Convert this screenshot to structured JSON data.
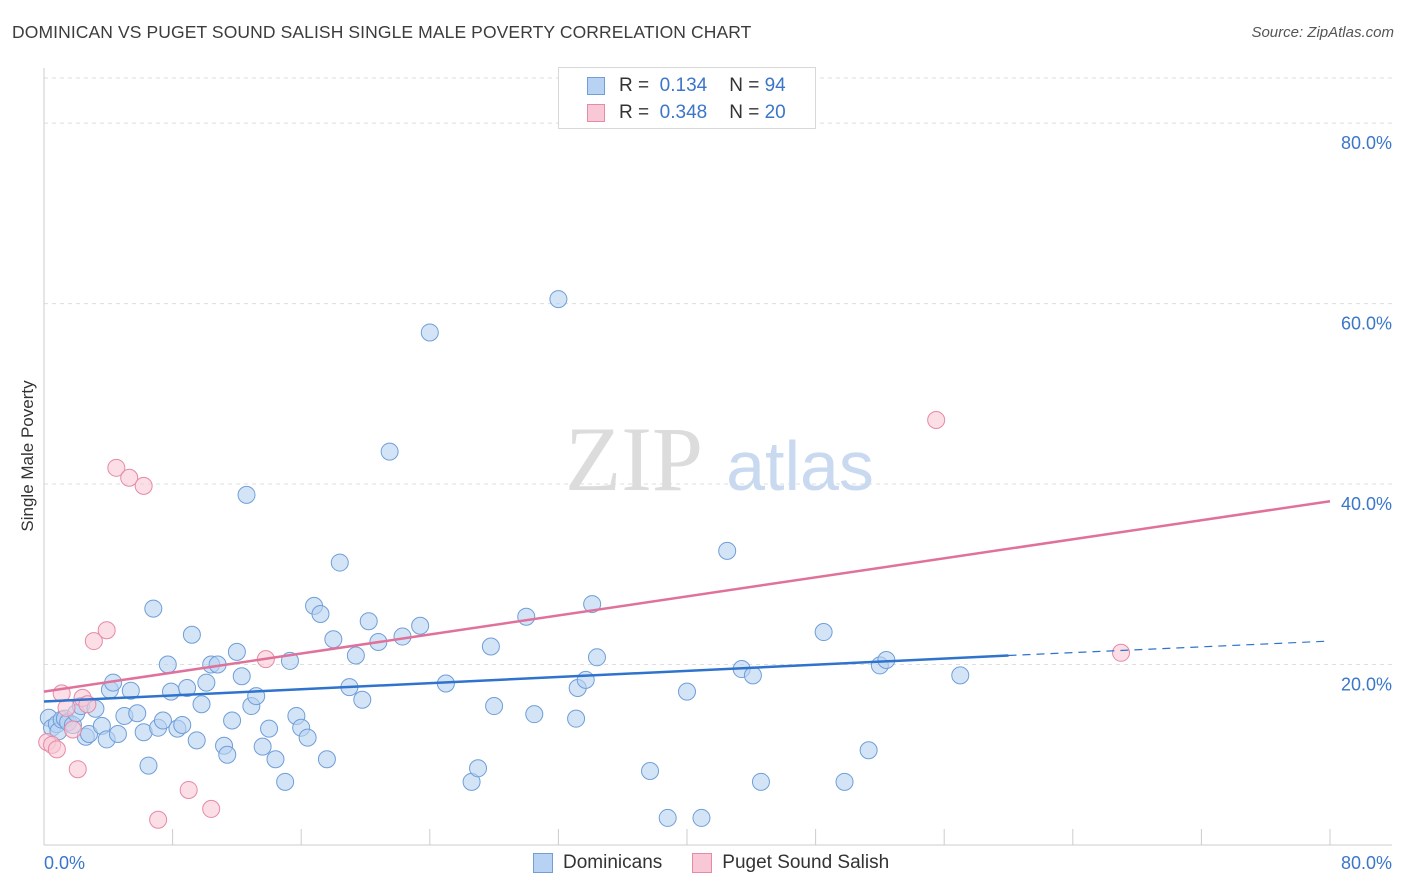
{
  "title": "DOMINICAN VS PUGET SOUND SALISH SINGLE MALE POVERTY CORRELATION CHART",
  "source": "Source: ZipAtlas.com",
  "watermark": {
    "zip": "ZIP",
    "atlas": "atlas"
  },
  "legend": {
    "r_label": "R =",
    "n_label": "N =",
    "rows": [
      {
        "r": "0.134",
        "n": "94",
        "color": "#6f9ed8"
      },
      {
        "r": "0.348",
        "n": "20",
        "color": "#e68aa5"
      }
    ]
  },
  "chart_data": {
    "type": "scatter",
    "title": "DOMINICAN VS PUGET SOUND SALISH SINGLE MALE POVERTY CORRELATION CHART",
    "ylabel": "Single Male Poverty",
    "xlabel": "",
    "xlim": [
      0,
      80
    ],
    "ylim": [
      0,
      85
    ],
    "x_tick_labels": [
      "0.0%",
      "80.0%"
    ],
    "y_tick_labels": [
      "20.0%",
      "40.0%",
      "60.0%",
      "80.0%"
    ],
    "y_ticks": [
      20,
      40,
      60,
      80
    ],
    "grid": true,
    "series": [
      {
        "name": "Dominicans",
        "color": "#6f9ed8",
        "fill": "#b7d2f2",
        "R": 0.134,
        "N": 94,
        "trend": {
          "x0": 0,
          "y0": 15.9,
          "x1": 60,
          "y1": 21.0,
          "dash_to_x": 80,
          "dash_to_y": 22.6
        },
        "points": [
          [
            0.3,
            14.1
          ],
          [
            0.5,
            13.0
          ],
          [
            0.8,
            13.4
          ],
          [
            0.9,
            12.6
          ],
          [
            1.1,
            13.9
          ],
          [
            1.3,
            14.0
          ],
          [
            1.5,
            13.6
          ],
          [
            1.8,
            13.3
          ],
          [
            2.0,
            14.6
          ],
          [
            2.3,
            15.4
          ],
          [
            2.6,
            12.0
          ],
          [
            2.8,
            12.3
          ],
          [
            3.2,
            15.1
          ],
          [
            3.6,
            13.2
          ],
          [
            3.9,
            11.7
          ],
          [
            4.1,
            17.2
          ],
          [
            4.3,
            18.0
          ],
          [
            4.6,
            12.3
          ],
          [
            5.0,
            14.3
          ],
          [
            5.4,
            17.1
          ],
          [
            5.8,
            14.6
          ],
          [
            6.2,
            12.5
          ],
          [
            6.5,
            8.8
          ],
          [
            6.8,
            26.2
          ],
          [
            7.1,
            13.0
          ],
          [
            7.4,
            13.8
          ],
          [
            7.7,
            20.0
          ],
          [
            7.9,
            17.0
          ],
          [
            8.3,
            12.9
          ],
          [
            8.6,
            13.3
          ],
          [
            8.9,
            17.4
          ],
          [
            9.2,
            23.3
          ],
          [
            9.5,
            11.6
          ],
          [
            9.8,
            15.6
          ],
          [
            10.1,
            18.0
          ],
          [
            10.4,
            20.0
          ],
          [
            10.8,
            20.0
          ],
          [
            11.2,
            11.0
          ],
          [
            11.4,
            10.0
          ],
          [
            11.7,
            13.8
          ],
          [
            12.0,
            21.4
          ],
          [
            12.3,
            18.7
          ],
          [
            12.6,
            38.8
          ],
          [
            12.9,
            15.4
          ],
          [
            13.2,
            16.5
          ],
          [
            13.6,
            10.9
          ],
          [
            14.0,
            12.9
          ],
          [
            14.4,
            9.5
          ],
          [
            15.0,
            7.0
          ],
          [
            15.3,
            20.4
          ],
          [
            15.7,
            14.3
          ],
          [
            16.0,
            13.0
          ],
          [
            16.4,
            11.9
          ],
          [
            16.8,
            26.5
          ],
          [
            17.2,
            25.6
          ],
          [
            17.6,
            9.5
          ],
          [
            18.0,
            22.8
          ],
          [
            18.4,
            31.3
          ],
          [
            19.0,
            17.5
          ],
          [
            19.4,
            21.0
          ],
          [
            19.8,
            16.1
          ],
          [
            20.2,
            24.8
          ],
          [
            20.8,
            22.5
          ],
          [
            21.5,
            43.6
          ],
          [
            22.3,
            23.1
          ],
          [
            23.4,
            24.3
          ],
          [
            24.0,
            56.8
          ],
          [
            25.0,
            17.9
          ],
          [
            26.6,
            7.0
          ],
          [
            27.0,
            8.5
          ],
          [
            27.8,
            22.0
          ],
          [
            28.0,
            15.4
          ],
          [
            30.0,
            25.3
          ],
          [
            30.5,
            14.5
          ],
          [
            32.0,
            60.5
          ],
          [
            33.1,
            14.0
          ],
          [
            33.2,
            17.4
          ],
          [
            33.7,
            18.3
          ],
          [
            34.1,
            26.7
          ],
          [
            34.4,
            20.8
          ],
          [
            37.7,
            8.2
          ],
          [
            38.8,
            3.0
          ],
          [
            40.0,
            17.0
          ],
          [
            40.9,
            3.0
          ],
          [
            42.5,
            32.6
          ],
          [
            43.4,
            19.5
          ],
          [
            44.1,
            18.8
          ],
          [
            44.6,
            7.0
          ],
          [
            48.5,
            23.6
          ],
          [
            49.8,
            7.0
          ],
          [
            51.3,
            10.5
          ],
          [
            52.0,
            19.9
          ],
          [
            52.4,
            20.5
          ],
          [
            57.0,
            18.8
          ]
        ]
      },
      {
        "name": "Puget Sound Salish",
        "color": "#e68aa5",
        "fill": "#f9c8d6",
        "R": 0.348,
        "N": 20,
        "trend": {
          "x0": 0,
          "y0": 17.0,
          "x1": 80,
          "y1": 38.1
        },
        "points": [
          [
            0.2,
            11.4
          ],
          [
            0.5,
            11.1
          ],
          [
            0.8,
            10.6
          ],
          [
            1.1,
            16.8
          ],
          [
            1.4,
            15.2
          ],
          [
            1.8,
            12.8
          ],
          [
            2.1,
            8.4
          ],
          [
            2.4,
            16.3
          ],
          [
            2.7,
            15.6
          ],
          [
            3.1,
            22.6
          ],
          [
            3.9,
            23.8
          ],
          [
            4.5,
            41.8
          ],
          [
            5.3,
            40.7
          ],
          [
            6.2,
            39.8
          ],
          [
            7.1,
            2.8
          ],
          [
            9.0,
            6.1
          ],
          [
            10.4,
            4.0
          ],
          [
            13.8,
            20.6
          ],
          [
            55.5,
            47.1
          ],
          [
            67.0,
            21.3
          ]
        ]
      }
    ]
  },
  "bottom_legend": [
    {
      "label": "Dominicans"
    },
    {
      "label": "Puget Sound Salish"
    }
  ]
}
